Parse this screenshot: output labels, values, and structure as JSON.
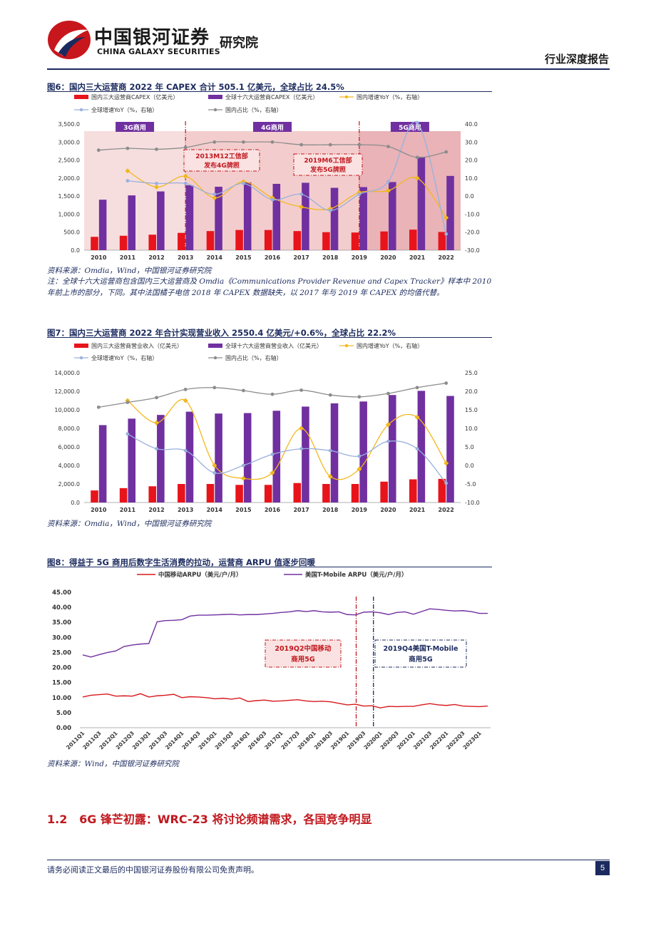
{
  "header": {
    "company_cn": "中国银河证券",
    "company_en": "CHINA GALAXY SECURITIES",
    "institute": "研究院",
    "report_type": "行业深度报告"
  },
  "figures": [
    {
      "title": "图6：国内三大运营商 2022 年 CAPEX 合计 505.1 亿美元，全球占比 24.5%",
      "source": "资料来源：Omdia，Wind，中国银河证券研究院",
      "note": "注：全球十六大运营商包含国内三大运营商及 Omdia《Communications Provider Revenue and Capex Tracker》样本中 2010 年前上市的部分，下同。其中法国橘子电信 2018 年 CAPEX 数据缺失，以 2017 年与 2019 年 CAPEX 的均值代替。"
    },
    {
      "title": "图7：国内三大运营商 2022 年合计实现营业收入 2550.4 亿美元/+0.6%，全球占比 22.2%",
      "source": "资料来源：Omdia，Wind，中国银河证券研究院"
    },
    {
      "title": "图8：得益于 5G 商用后数字生活消费的拉动，运营商 ARPU 值逐步回暖",
      "source": "资料来源：Wind，中国银河证券研究院"
    }
  ],
  "chart_data": [
    {
      "type": "bar",
      "categories": [
        "2010",
        "2011",
        "2012",
        "2013",
        "2014",
        "2015",
        "2016",
        "2017",
        "2018",
        "2019",
        "2020",
        "2021",
        "2022"
      ],
      "series": [
        {
          "name": "国内三大运营商CAPEX（亿美元）",
          "axis": "left",
          "kind": "bar",
          "color": "#e8141b",
          "values": [
            370,
            400,
            430,
            480,
            530,
            560,
            560,
            530,
            500,
            490,
            520,
            570,
            505
          ]
        },
        {
          "name": "全球十六大运营商CAPEX（亿美元）",
          "axis": "left",
          "kind": "bar",
          "color": "#7030a0",
          "values": [
            1400,
            1520,
            1630,
            1800,
            1760,
            1880,
            1840,
            1870,
            1730,
            1750,
            1890,
            2590,
            2060
          ]
        },
        {
          "name": "国内增速YoY（%，右轴）",
          "axis": "right",
          "kind": "line",
          "color": "#f2b81d",
          "values": [
            null,
            14,
            5,
            11,
            -1,
            8,
            -1,
            -6,
            -7,
            2,
            3,
            10,
            -12
          ]
        },
        {
          "name": "全球增速YoY（%，右轴）",
          "axis": "right",
          "kind": "line",
          "color": "#9ab0dd",
          "values": [
            null,
            8.5,
            7,
            7,
            1,
            7,
            -2,
            1,
            -8,
            1,
            8,
            45,
            -21
          ]
        },
        {
          "name": "国内占比（%，右轴）",
          "axis": "right",
          "kind": "line",
          "color": "#8c8c8c",
          "values": [
            25.5,
            26.5,
            26,
            27,
            30,
            30,
            30,
            28.5,
            28.5,
            28.5,
            27.5,
            21.5,
            24.5
          ]
        }
      ],
      "left_ticks": [
        "0.0",
        "500.0",
        "1,000.0",
        "1,500.0",
        "2,000.0",
        "2,500.0",
        "3,000.0",
        "3,500.0"
      ],
      "right_ticks": [
        "-30.0",
        "-20.0",
        "-10.0",
        "0.0",
        "10.0",
        "20.0",
        "30.0",
        "40.0"
      ],
      "ylim": [
        0,
        3500
      ],
      "y2lim": [
        -30,
        40
      ],
      "phases": [
        {
          "label": "3G商用",
          "start": 2010,
          "end": 2013
        },
        {
          "label": "4G商用",
          "start": 2013,
          "end": 2019
        },
        {
          "label": "5G商用",
          "start": 2019,
          "end": 2022
        }
      ],
      "annotations": [
        {
          "text1": "2013M12工信部",
          "text2": "发布4G牌照"
        },
        {
          "text1": "2019M6工信部",
          "text2": "发布5G牌照"
        }
      ]
    },
    {
      "type": "bar",
      "categories": [
        "2010",
        "2011",
        "2012",
        "2013",
        "2014",
        "2015",
        "2016",
        "2017",
        "2018",
        "2019",
        "2020",
        "2021",
        "2022"
      ],
      "series": [
        {
          "name": "国内三大运营商营业收入（亿美元）",
          "axis": "left",
          "kind": "bar",
          "color": "#e8141b",
          "values": [
            1300,
            1550,
            1750,
            2000,
            2000,
            1900,
            1900,
            2100,
            2000,
            2000,
            2250,
            2500,
            2550
          ]
        },
        {
          "name": "全球十六大运营商营业收入（亿美元）",
          "axis": "left",
          "kind": "bar",
          "color": "#7030a0",
          "values": [
            8350,
            9050,
            9450,
            9800,
            9600,
            9650,
            9900,
            10350,
            10700,
            10900,
            11600,
            12050,
            11500
          ]
        },
        {
          "name": "国内增速YoY（%，右轴）",
          "axis": "right",
          "kind": "line",
          "color": "#f2b81d",
          "values": [
            null,
            17.5,
            11.5,
            17.5,
            0,
            -3.5,
            -2,
            10,
            -3,
            -1,
            11,
            13,
            0.6
          ]
        },
        {
          "name": "全球增速YoY（%，右轴）",
          "axis": "right",
          "kind": "line",
          "color": "#9ab0dd",
          "values": [
            null,
            8.5,
            4.5,
            4,
            -2,
            0,
            3,
            4.5,
            4,
            2.5,
            6.5,
            4.5,
            -4.8
          ]
        },
        {
          "name": "国内占比（%，右轴）",
          "axis": "right",
          "kind": "line",
          "color": "#8c8c8c",
          "values": [
            15.7,
            17,
            18.3,
            20.5,
            21,
            20.2,
            19.2,
            20.3,
            19,
            18.5,
            19.4,
            21,
            22.2
          ]
        }
      ],
      "left_ticks": [
        "0.0",
        "2,000.0",
        "4,000.0",
        "6,000.0",
        "8,000.0",
        "10,000.0",
        "12,000.0",
        "14,000.0"
      ],
      "right_ticks": [
        "-10.0",
        "-5.0",
        "0.0",
        "5.0",
        "10.0",
        "15.0",
        "20.0",
        "25.0"
      ],
      "ylim": [
        0,
        14000
      ],
      "y2lim": [
        -10,
        25
      ]
    },
    {
      "type": "line",
      "x": [
        "2011Q1",
        "2011Q2",
        "2011Q3",
        "2011Q4",
        "2012Q1",
        "2012Q2",
        "2012Q3",
        "2012Q4",
        "2013Q1",
        "2013Q2",
        "2013Q3",
        "2013Q4",
        "2014Q1",
        "2014Q2",
        "2014Q3",
        "2014Q4",
        "2015Q1",
        "2015Q2",
        "2015Q3",
        "2015Q4",
        "2016Q1",
        "2016Q2",
        "2016Q3",
        "2016Q4",
        "2017Q1",
        "2017Q2",
        "2017Q3",
        "2017Q4",
        "2018Q1",
        "2018Q2",
        "2018Q3",
        "2018Q4",
        "2019Q1",
        "2019Q2",
        "2019Q3",
        "2019Q4",
        "2020Q1",
        "2020Q2",
        "2020Q3",
        "2020Q4",
        "2021Q1",
        "2021Q2",
        "2021Q3",
        "2021Q4",
        "2022Q1",
        "2022Q2",
        "2022Q3",
        "2022Q4",
        "2023Q1",
        "2023Q2"
      ],
      "x_tick_labels": [
        "2011Q1",
        "2011Q3",
        "2012Q1",
        "2012Q3",
        "2013Q1",
        "2013Q3",
        "2014Q1",
        "2014Q3",
        "2015Q1",
        "2015Q3",
        "2016Q1",
        "2016Q3",
        "2017Q1",
        "2017Q3",
        "2018Q1",
        "2018Q3",
        "2019Q1",
        "2019Q3",
        "2020Q1",
        "2020Q3",
        "2021Q1",
        "2021Q3",
        "2022Q1",
        "2022Q3",
        "2023Q1"
      ],
      "series": [
        {
          "name": "中国移动ARPU（美元/户/月）",
          "color": "#d7191c",
          "values": [
            10.2,
            10.8,
            11,
            11.2,
            10.5,
            10.6,
            10.5,
            11.3,
            10.2,
            10.6,
            10.8,
            11.1,
            10,
            10.3,
            10.2,
            10,
            9.6,
            9.8,
            9.5,
            9.9,
            8.7,
            9,
            9.2,
            8.8,
            8.9,
            9.1,
            9.3,
            8.9,
            8.7,
            8.8,
            8.6,
            8.1,
            7.6,
            7.8,
            7.2,
            7.3,
            6.6,
            7.1,
            7,
            7.1,
            7.1,
            7.6,
            8,
            7.6,
            7.4,
            7.7,
            7.2,
            7.1,
            7,
            7.2
          ]
        },
        {
          "name": "美国T-Mobile ARPU（美元/户/月）",
          "color": "#7030a0",
          "values": [
            24.2,
            23.5,
            24.3,
            25,
            25.5,
            27,
            27.5,
            27.8,
            28,
            35.2,
            35.6,
            35.7,
            35.9,
            37.1,
            37.4,
            37.4,
            37.5,
            37.6,
            37.7,
            37.5,
            37.6,
            37.6,
            37.8,
            38,
            38.3,
            38.5,
            38.9,
            38.6,
            38.9,
            38.5,
            38.4,
            38.5,
            37.6,
            37.5,
            38.4,
            38.5,
            38.2,
            37.6,
            38.3,
            38.5,
            37.7,
            38.6,
            39.5,
            39.3,
            39,
            38.8,
            38.9,
            38.6,
            38,
            38
          ]
        }
      ],
      "left_ticks": [
        "0.00",
        "5.00",
        "10.00",
        "15.00",
        "20.00",
        "25.00",
        "30.00",
        "35.00",
        "40.00",
        "45.00"
      ],
      "ylim": [
        0,
        45
      ],
      "annotations": [
        {
          "text1": "2019Q2中国移动",
          "text2": "商用5G"
        },
        {
          "text1": "2019Q4美国T-Mobile",
          "text2": "商用5G"
        }
      ]
    }
  ],
  "section": {
    "number": "1.2",
    "title": "6G 锋芒初露：WRC-23 将讨论频谱需求，各国竞争明显"
  },
  "footer": {
    "disclaimer": "请务必阅读正文最后的中国银河证券股份有限公司免责声明。",
    "page": "5"
  }
}
